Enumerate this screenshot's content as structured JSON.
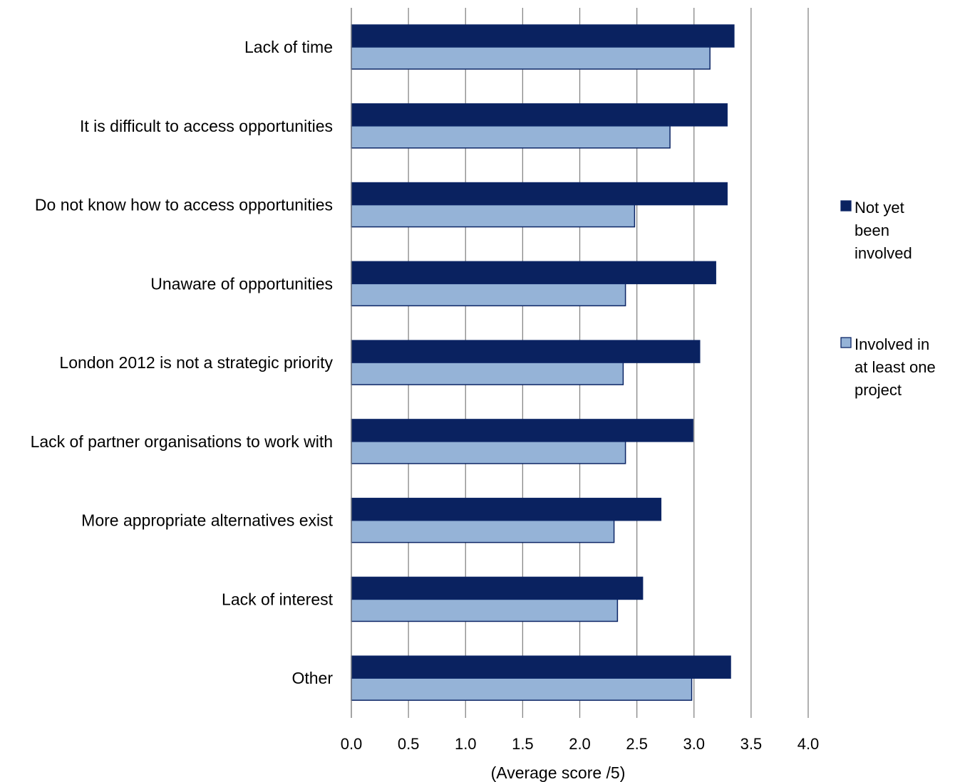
{
  "chart_data": {
    "type": "bar",
    "orientation": "horizontal",
    "title": "",
    "xlabel": "(Average score /5)",
    "ylabel": "",
    "xlim": [
      0,
      4
    ],
    "xticks": [
      "0.0",
      "0.5",
      "1.0",
      "1.5",
      "2.0",
      "2.5",
      "3.0",
      "3.5",
      "4.0"
    ],
    "grid": "vertical",
    "legend_position": "right",
    "categories": [
      "Lack of time",
      "It is difficult to access opportunities",
      "Do not know how to access opportunities",
      "Unaware of opportunities",
      "London 2012 is not a strategic priority",
      "Lack of partner organisations to work with",
      "More appropriate alternatives exist",
      "Lack of interest",
      "Other"
    ],
    "series": [
      {
        "name": "Not yet been involved",
        "legend_lines": [
          "Not yet",
          "been",
          "involved"
        ],
        "color": "#0a2260",
        "values": [
          3.35,
          3.29,
          3.29,
          3.19,
          3.05,
          2.99,
          2.71,
          2.55,
          3.32
        ]
      },
      {
        "name": "Involved in at least one project",
        "legend_lines": [
          "Involved in",
          "at least one",
          "project"
        ],
        "color": "#95b3d7",
        "values": [
          3.14,
          2.79,
          2.48,
          2.4,
          2.38,
          2.4,
          2.3,
          2.33,
          2.98
        ]
      }
    ]
  }
}
